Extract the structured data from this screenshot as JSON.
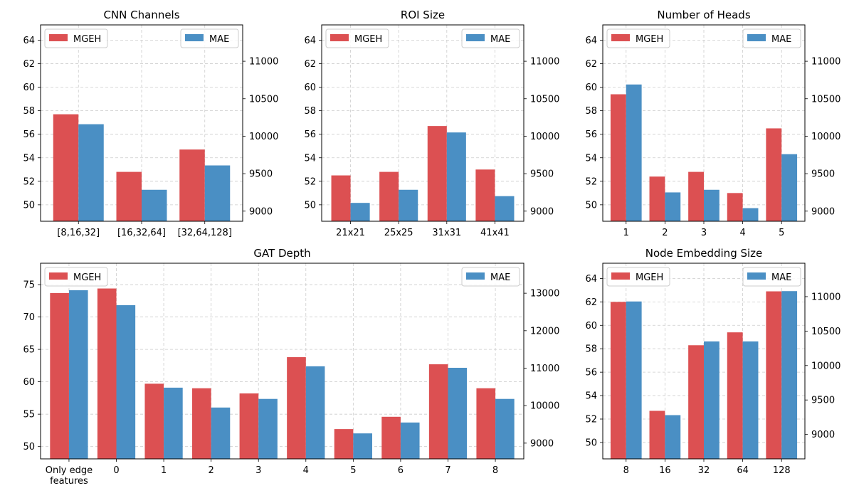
{
  "colors": {
    "MGEH": "#dc5052",
    "MAE": "#4a8fc4"
  },
  "chart_data": [
    {
      "type": "bar",
      "title": "CNN Channels",
      "categories": [
        "[8,16,32]",
        "[16,32,64]",
        "[32,64,128]"
      ],
      "series": [
        {
          "name": "MGEH",
          "axis": "left",
          "values": [
            57.7,
            52.8,
            54.7
          ]
        },
        {
          "name": "MAE",
          "axis": "right",
          "values": [
            10160,
            9285,
            9610
          ]
        }
      ],
      "ylim_left": [
        48.6,
        65.3
      ],
      "yticks_left": [
        50,
        52,
        54,
        56,
        58,
        60,
        62,
        64
      ],
      "ylim_right": [
        8865,
        11485
      ],
      "yticks_right": [
        9000,
        9500,
        10000,
        10500,
        11000
      ],
      "grid": true,
      "legend": [
        "top-left: MGEH",
        "top-right: MAE"
      ]
    },
    {
      "type": "bar",
      "title": "ROI Size",
      "categories": [
        "21x21",
        "25x25",
        "31x31",
        "41x41"
      ],
      "series": [
        {
          "name": "MGEH",
          "axis": "left",
          "values": [
            52.5,
            52.8,
            56.7,
            53.0
          ]
        },
        {
          "name": "MAE",
          "axis": "right",
          "values": [
            9110,
            9285,
            10050,
            9200
          ]
        }
      ],
      "ylim_left": [
        48.6,
        65.3
      ],
      "yticks_left": [
        50,
        52,
        54,
        56,
        58,
        60,
        62,
        64
      ],
      "ylim_right": [
        8865,
        11485
      ],
      "yticks_right": [
        9000,
        9500,
        10000,
        10500,
        11000
      ],
      "grid": true,
      "legend": [
        "top-left: MGEH",
        "top-right: MAE"
      ]
    },
    {
      "type": "bar",
      "title": "Number of Heads",
      "categories": [
        "1",
        "2",
        "3",
        "4",
        "5"
      ],
      "series": [
        {
          "name": "MGEH",
          "axis": "left",
          "values": [
            59.4,
            52.4,
            52.8,
            51.0,
            56.5
          ]
        },
        {
          "name": "MAE",
          "axis": "right",
          "values": [
            10690,
            9250,
            9285,
            9040,
            9760
          ]
        }
      ],
      "ylim_left": [
        48.6,
        65.3
      ],
      "yticks_left": [
        50,
        52,
        54,
        56,
        58,
        60,
        62,
        64
      ],
      "ylim_right": [
        8865,
        11485
      ],
      "yticks_right": [
        9000,
        9500,
        10000,
        10500,
        11000
      ],
      "grid": true,
      "legend": [
        "top-left: MGEH",
        "top-right: MAE"
      ]
    },
    {
      "type": "bar",
      "title": "GAT Depth",
      "categories": [
        "Only edge\nfeatures",
        "0",
        "1",
        "2",
        "3",
        "4",
        "5",
        "6",
        "7",
        "8"
      ],
      "series": [
        {
          "name": "MGEH",
          "axis": "left",
          "values": [
            73.7,
            74.4,
            59.7,
            59.0,
            58.2,
            63.8,
            52.7,
            54.6,
            62.7,
            59.0
          ]
        },
        {
          "name": "MAE",
          "axis": "right",
          "values": [
            13080,
            12680,
            10480,
            9950,
            10180,
            11050,
            9260,
            9550,
            11010,
            10180
          ]
        }
      ],
      "ylim_left": [
        48.1,
        78.3
      ],
      "yticks_left": [
        50,
        55,
        60,
        65,
        70,
        75
      ],
      "ylim_right": [
        8580,
        13800
      ],
      "yticks_right": [
        9000,
        10000,
        11000,
        12000,
        13000
      ],
      "grid": true,
      "legend": [
        "top-left: MGEH",
        "top-right: MAE"
      ]
    },
    {
      "type": "bar",
      "title": "Node Embedding Size",
      "categories": [
        "8",
        "16",
        "32",
        "64",
        "128"
      ],
      "series": [
        {
          "name": "MGEH",
          "axis": "left",
          "values": [
            62.0,
            52.7,
            58.3,
            59.4,
            62.9
          ]
        },
        {
          "name": "MAE",
          "axis": "right",
          "values": [
            10930,
            9280,
            10350,
            10350,
            11080
          ]
        }
      ],
      "ylim_left": [
        48.6,
        65.3
      ],
      "yticks_left": [
        50,
        52,
        54,
        56,
        58,
        60,
        62,
        64
      ],
      "ylim_right": [
        8645,
        11485
      ],
      "yticks_right": [
        9000,
        9500,
        10000,
        10500,
        11000
      ],
      "grid": true,
      "legend": [
        "top-left: MGEH",
        "top-right: MAE"
      ]
    }
  ]
}
